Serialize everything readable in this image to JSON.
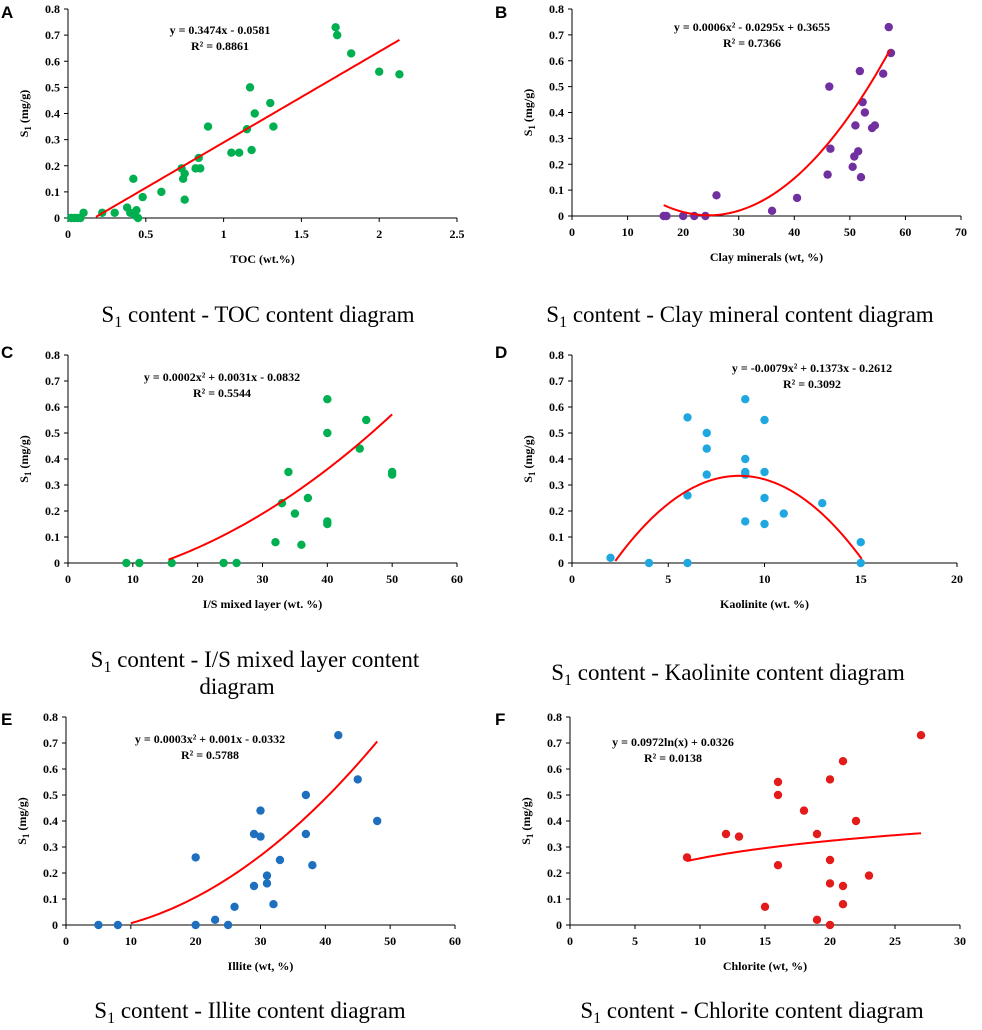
{
  "colors": {
    "fit": "#ff0000"
  },
  "chart_data": [
    {
      "type": "scatter",
      "panel": "A",
      "caption": {
        "pre": "S",
        "sub": "1",
        "post": " content - TOC content diagram"
      },
      "xlabel": "TOC (wt.%)",
      "ylabel": {
        "pre": "S",
        "sub": "1",
        "post": " (mg/g)"
      },
      "xlim": [
        0,
        2.5
      ],
      "ylim": [
        0,
        0.8
      ],
      "xticks": [
        0,
        0.5,
        1,
        1.5,
        2,
        2.5
      ],
      "xtick_labels": [
        "0",
        "0.5",
        "1",
        "1.5",
        "2",
        "2.5"
      ],
      "yticks": [
        0,
        0.1,
        0.2,
        0.3,
        0.4,
        0.5,
        0.6,
        0.7,
        0.8
      ],
      "ytick_labels": [
        "0",
        "0.1",
        "0.2",
        "0.3",
        "0.4",
        "0.5",
        "0.6",
        "0.7",
        "0.8"
      ],
      "equation": "y = 0.3474x - 0.0581",
      "r2": "R² = 0.8861",
      "fit": {
        "kind": "poly",
        "coef": [
          -0.0581,
          0.3474
        ],
        "xrange": [
          0.18,
          2.13
        ]
      },
      "color": "#00b050",
      "points": [
        [
          0.02,
          0
        ],
        [
          0.04,
          0
        ],
        [
          0.06,
          0
        ],
        [
          0.08,
          0
        ],
        [
          0.1,
          0.02
        ],
        [
          0.22,
          0.02
        ],
        [
          0.3,
          0.02
        ],
        [
          0.38,
          0.04
        ],
        [
          0.4,
          0.02
        ],
        [
          0.42,
          0.15
        ],
        [
          0.43,
          0.01
        ],
        [
          0.44,
          0.03
        ],
        [
          0.45,
          0
        ],
        [
          0.48,
          0.08
        ],
        [
          0.6,
          0.1
        ],
        [
          0.73,
          0.19
        ],
        [
          0.74,
          0.15
        ],
        [
          0.75,
          0.17
        ],
        [
          0.75,
          0.07
        ],
        [
          0.82,
          0.19
        ],
        [
          0.84,
          0.23
        ],
        [
          0.85,
          0.19
        ],
        [
          0.9,
          0.35
        ],
        [
          1.05,
          0.25
        ],
        [
          1.1,
          0.25
        ],
        [
          1.15,
          0.34
        ],
        [
          1.17,
          0.5
        ],
        [
          1.18,
          0.26
        ],
        [
          1.2,
          0.4
        ],
        [
          1.3,
          0.44
        ],
        [
          1.32,
          0.35
        ],
        [
          1.72,
          0.73
        ],
        [
          1.73,
          0.7
        ],
        [
          1.82,
          0.63
        ],
        [
          2.0,
          0.56
        ],
        [
          2.13,
          0.55
        ]
      ]
    },
    {
      "type": "scatter",
      "panel": "B",
      "caption": {
        "pre": "S",
        "sub": "1",
        "post": " content - Clay mineral content diagram"
      },
      "xlabel": "Clay minerals  (wt, %)",
      "ylabel": {
        "pre": "S",
        "sub": "1",
        "post": " (mg/g)"
      },
      "xlim": [
        0,
        70
      ],
      "ylim": [
        0,
        0.8
      ],
      "xticks": [
        0,
        10,
        20,
        30,
        40,
        50,
        60,
        70
      ],
      "xtick_labels": [
        "0",
        "10",
        "20",
        "30",
        "40",
        "50",
        "60",
        "70"
      ],
      "yticks": [
        0,
        0.1,
        0.2,
        0.3,
        0.4,
        0.5,
        0.6,
        0.7,
        0.8
      ],
      "ytick_labels": [
        "0",
        "0.1",
        "0.2",
        "0.3",
        "0.4",
        "0.5",
        "0.6",
        "0.7",
        "0.8"
      ],
      "equation": "y = 0.0006x² - 0.0295x + 0.3655",
      "r2": "R² = 0.7366",
      "fit": {
        "kind": "poly",
        "coef": [
          0.3655,
          -0.0295,
          0.0006
        ],
        "xrange": [
          16.5,
          57.2
        ]
      },
      "color": "#7030a0",
      "points": [
        [
          16.5,
          0
        ],
        [
          17,
          0
        ],
        [
          20,
          0
        ],
        [
          22,
          0
        ],
        [
          24,
          0
        ],
        [
          26,
          0.08
        ],
        [
          36,
          0.02
        ],
        [
          40.5,
          0.07
        ],
        [
          46,
          0.16
        ],
        [
          46.3,
          0.5
        ],
        [
          46.5,
          0.26
        ],
        [
          50.5,
          0.19
        ],
        [
          50.8,
          0.23
        ],
        [
          51,
          0.35
        ],
        [
          51.5,
          0.25
        ],
        [
          51.8,
          0.56
        ],
        [
          52,
          0.15
        ],
        [
          52.3,
          0.44
        ],
        [
          52.7,
          0.4
        ],
        [
          54,
          0.34
        ],
        [
          54.5,
          0.35
        ],
        [
          56,
          0.55
        ],
        [
          57,
          0.73
        ],
        [
          57.4,
          0.63
        ]
      ]
    },
    {
      "type": "scatter",
      "panel": "C",
      "caption": {
        "pre": "S",
        "sub": "1",
        "post": " content - I/S mixed layer content",
        "line2": "diagram"
      },
      "xlabel": "I/S mixed layer (wt. %)",
      "ylabel": {
        "pre": "S",
        "sub": "1",
        "post": " (mg/g)"
      },
      "xlim": [
        0,
        60
      ],
      "ylim": [
        0,
        0.8
      ],
      "xticks": [
        0,
        10,
        20,
        30,
        40,
        50,
        60
      ],
      "xtick_labels": [
        "0",
        "10",
        "20",
        "30",
        "40",
        "50",
        "60"
      ],
      "yticks": [
        0,
        0.1,
        0.2,
        0.3,
        0.4,
        0.5,
        0.6,
        0.7,
        0.8
      ],
      "ytick_labels": [
        "0",
        "0.1",
        "0.2",
        "0.3",
        "0.4",
        "0.5",
        "0.6",
        "0.7",
        "0.8"
      ],
      "equation": "y = 0.0002x² + 0.0031x - 0.0832",
      "r2": "R² = 0.5544",
      "fit": {
        "kind": "poly",
        "coef": [
          -0.0832,
          0.0031,
          0.0002
        ],
        "xrange": [
          15.5,
          50
        ]
      },
      "color": "#00b050",
      "points": [
        [
          9,
          0
        ],
        [
          11,
          0
        ],
        [
          16,
          0
        ],
        [
          24,
          0
        ],
        [
          26,
          0
        ],
        [
          32,
          0.08
        ],
        [
          33,
          0.23
        ],
        [
          34,
          0.35
        ],
        [
          35,
          0.19
        ],
        [
          36,
          0.07
        ],
        [
          37,
          0.25
        ],
        [
          40,
          0.15
        ],
        [
          40,
          0.16
        ],
        [
          40,
          0.5
        ],
        [
          40,
          0.63
        ],
        [
          45,
          0.44
        ],
        [
          46,
          0.55
        ],
        [
          50,
          0.34
        ],
        [
          50,
          0.35
        ]
      ]
    },
    {
      "type": "scatter",
      "panel": "D",
      "caption": {
        "pre": "S",
        "sub": "1",
        "post": " content - Kaolinite content diagram"
      },
      "xlabel": "Kaolinite  (wt. %)",
      "ylabel": {
        "pre": "S",
        "sub": "1",
        "post": " (mg/g)"
      },
      "xlim": [
        0,
        20
      ],
      "ylim": [
        0,
        0.8
      ],
      "xticks": [
        0,
        5,
        10,
        15,
        20
      ],
      "xtick_labels": [
        "0",
        "5",
        "10",
        "15",
        "20"
      ],
      "yticks": [
        0,
        0.1,
        0.2,
        0.3,
        0.4,
        0.5,
        0.6,
        0.7,
        0.8
      ],
      "ytick_labels": [
        "0",
        "0.1",
        "0.2",
        "0.3",
        "0.4",
        "0.5",
        "0.6",
        "0.7",
        "0.8"
      ],
      "equation": "y = -0.0079x² + 0.1373x - 0.2612",
      "r2": "R² = 0.3092",
      "fit": {
        "kind": "poly",
        "coef": [
          -0.2612,
          0.1373,
          -0.0079
        ],
        "xrange": [
          2.25,
          15.05
        ]
      },
      "color": "#1fa8e0",
      "points": [
        [
          2,
          0.02
        ],
        [
          4,
          0
        ],
        [
          6,
          0
        ],
        [
          6,
          0.26
        ],
        [
          6,
          0.56
        ],
        [
          7,
          0.34
        ],
        [
          7,
          0.44
        ],
        [
          7,
          0.5
        ],
        [
          9,
          0.16
        ],
        [
          9,
          0.34
        ],
        [
          9,
          0.35
        ],
        [
          9,
          0.4
        ],
        [
          9,
          0.63
        ],
        [
          10,
          0.15
        ],
        [
          10,
          0.25
        ],
        [
          10,
          0.35
        ],
        [
          10,
          0.55
        ],
        [
          11,
          0.19
        ],
        [
          13,
          0.23
        ],
        [
          15,
          0
        ],
        [
          15,
          0.08
        ]
      ]
    },
    {
      "type": "scatter",
      "panel": "E",
      "caption": {
        "pre": "S",
        "sub": "1",
        "post": " content - Illite content diagram"
      },
      "xlabel": "Illite  (wt, %)",
      "ylabel": {
        "pre": "S",
        "sub": "1",
        "post": " (mg/g)"
      },
      "xlim": [
        0,
        60
      ],
      "ylim": [
        0,
        0.8
      ],
      "xticks": [
        0,
        10,
        20,
        30,
        40,
        50,
        60
      ],
      "xtick_labels": [
        "0",
        "10",
        "20",
        "30",
        "40",
        "50",
        "60"
      ],
      "yticks": [
        0,
        0.1,
        0.2,
        0.3,
        0.4,
        0.5,
        0.6,
        0.7,
        0.8
      ],
      "ytick_labels": [
        "0",
        "0.1",
        "0.2",
        "0.3",
        "0.4",
        "0.5",
        "0.6",
        "0.7",
        "0.8"
      ],
      "equation": "y = 0.0003x² + 0.001x - 0.0332",
      "r2": "R² = 0.5788",
      "fit": {
        "kind": "poly",
        "coef": [
          -0.0332,
          0.001,
          0.0003
        ],
        "xrange": [
          10,
          48
        ]
      },
      "color": "#1f6fbf",
      "points": [
        [
          5,
          0
        ],
        [
          8,
          0
        ],
        [
          20,
          0
        ],
        [
          20,
          0.26
        ],
        [
          23,
          0.02
        ],
        [
          25,
          0
        ],
        [
          26,
          0.07
        ],
        [
          29,
          0.15
        ],
        [
          29,
          0.35
        ],
        [
          30,
          0.34
        ],
        [
          30,
          0.44
        ],
        [
          31,
          0.16
        ],
        [
          31,
          0.19
        ],
        [
          32,
          0.08
        ],
        [
          33,
          0.25
        ],
        [
          37,
          0.35
        ],
        [
          37,
          0.5
        ],
        [
          38,
          0.23
        ],
        [
          42,
          0.73
        ],
        [
          45,
          0.56
        ],
        [
          48,
          0.4
        ]
      ]
    },
    {
      "type": "scatter",
      "panel": "F",
      "caption": {
        "pre": "S",
        "sub": "1",
        "post": " content - Chlorite content diagram"
      },
      "xlabel": "Chlorite  (wt, %)",
      "ylabel": {
        "pre": "S",
        "sub": "1",
        "post": " (mg/g)"
      },
      "xlim": [
        0,
        30
      ],
      "ylim": [
        0,
        0.8
      ],
      "xticks": [
        0,
        5,
        10,
        15,
        20,
        25,
        30
      ],
      "xtick_labels": [
        "0",
        "5",
        "10",
        "15",
        "20",
        "25",
        "30"
      ],
      "yticks": [
        0,
        0.1,
        0.2,
        0.3,
        0.4,
        0.5,
        0.6,
        0.7,
        0.8
      ],
      "ytick_labels": [
        "0",
        "0.1",
        "0.2",
        "0.3",
        "0.4",
        "0.5",
        "0.6",
        "0.7",
        "0.8"
      ],
      "equation": "y = 0.0972ln(x) + 0.0326",
      "r2": "R² = 0.0138",
      "fit": {
        "kind": "log",
        "coef": [
          0.0326,
          0.0972
        ],
        "xrange": [
          9,
          27
        ]
      },
      "color": "#e31b1b",
      "points": [
        [
          9,
          0.26
        ],
        [
          12,
          0.35
        ],
        [
          13,
          0.34
        ],
        [
          15,
          0.07
        ],
        [
          16,
          0.23
        ],
        [
          16,
          0.5
        ],
        [
          16,
          0.55
        ],
        [
          18,
          0.44
        ],
        [
          19,
          0.02
        ],
        [
          19,
          0.35
        ],
        [
          20,
          0
        ],
        [
          20,
          0.16
        ],
        [
          20,
          0.25
        ],
        [
          20,
          0.56
        ],
        [
          21,
          0.08
        ],
        [
          21,
          0.15
        ],
        [
          21,
          0.63
        ],
        [
          22,
          0.4
        ],
        [
          23,
          0.19
        ],
        [
          27,
          0.73
        ]
      ]
    }
  ]
}
